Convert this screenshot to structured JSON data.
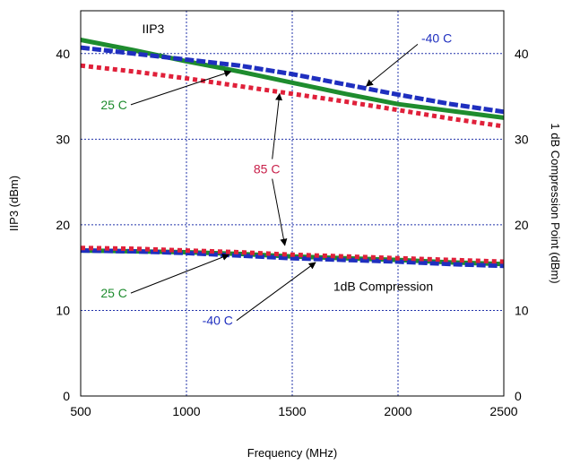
{
  "chart_data": {
    "type": "line",
    "title": "",
    "xlabel": "Frequency (MHz)",
    "ylabel": "IIP3 (dBm)",
    "ylabel_right": "1 dB Compression Point (dBm)",
    "xlim": [
      500,
      2500
    ],
    "ylim": [
      0,
      45
    ],
    "x_ticks": [
      500,
      1000,
      1500,
      2000,
      2500
    ],
    "y_ticks": [
      0,
      10,
      20,
      30,
      40
    ],
    "grid": true,
    "series": [
      {
        "name": "-40 C",
        "group": "IIP3",
        "color": "#1f2fbf",
        "style": "dashed",
        "x": [
          500,
          750,
          1000,
          1250,
          1500,
          1750,
          2000,
          2250,
          2500
        ],
        "y": [
          40.7,
          40.0,
          39.3,
          38.6,
          37.6,
          36.4,
          35.2,
          34.1,
          33.2
        ]
      },
      {
        "name": "25 C",
        "group": "IIP3",
        "color": "#1e8c2e",
        "style": "solid",
        "x": [
          500,
          750,
          1000,
          1250,
          1500,
          1750,
          2000,
          2250,
          2500
        ],
        "y": [
          41.6,
          40.4,
          39.1,
          37.9,
          36.6,
          35.3,
          34.1,
          33.3,
          32.5
        ]
      },
      {
        "name": "85 C",
        "group": "IIP3",
        "color": "#e0203a",
        "style": "dotted",
        "x": [
          500,
          750,
          1000,
          1250,
          1500,
          1750,
          2000,
          2250,
          2500
        ],
        "y": [
          38.6,
          37.9,
          37.1,
          36.2,
          35.3,
          34.4,
          33.4,
          32.4,
          31.5
        ]
      },
      {
        "name": "-40 C",
        "group": "1dB Compression",
        "color": "#1f2fbf",
        "style": "dashed",
        "x": [
          500,
          750,
          1000,
          1250,
          1500,
          1750,
          2000,
          2250,
          2500
        ],
        "y": [
          17.0,
          16.9,
          16.7,
          16.4,
          16.1,
          15.9,
          15.7,
          15.4,
          15.2
        ]
      },
      {
        "name": "25 C",
        "group": "1dB Compression",
        "color": "#1e8c2e",
        "style": "solid",
        "x": [
          500,
          750,
          1000,
          1250,
          1500,
          1750,
          2000,
          2250,
          2500
        ],
        "y": [
          17.0,
          16.9,
          16.8,
          16.6,
          16.3,
          16.1,
          15.9,
          15.6,
          15.4
        ]
      },
      {
        "name": "85 C",
        "group": "1dB Compression",
        "color": "#e0203a",
        "style": "dotted",
        "x": [
          500,
          750,
          1000,
          1250,
          1500,
          1750,
          2000,
          2250,
          2500
        ],
        "y": [
          17.3,
          17.2,
          17.0,
          16.8,
          16.5,
          16.3,
          16.1,
          15.9,
          15.7
        ]
      }
    ],
    "annotations": [
      {
        "text": "IIP3",
        "color": "#000000",
        "at": [
          790,
          42.4
        ],
        "anchor": "start",
        "arrows": []
      },
      {
        "text": "-40 C",
        "color": "#1f2fbf",
        "at": [
          2110,
          41.3
        ],
        "anchor": "start",
        "arrows": [
          [
            1850,
            36.2
          ]
        ]
      },
      {
        "text": "25 C",
        "color": "#1e8c2e",
        "at": [
          720,
          33.5
        ],
        "anchor": "end",
        "arrows": [
          [
            1210,
            37.9
          ]
        ]
      },
      {
        "text": "85 C",
        "color": "#c8204a",
        "at": [
          1380,
          26.0
        ],
        "anchor": "middle",
        "arrows": [
          [
            1440,
            35.3
          ],
          [
            1465,
            17.6
          ]
        ]
      },
      {
        "text": "25 C",
        "color": "#1e8c2e",
        "at": [
          720,
          11.5
        ],
        "anchor": "end",
        "arrows": [
          [
            1200,
            16.5
          ]
        ]
      },
      {
        "text": "-40 C",
        "color": "#1f2fbf",
        "at": [
          1220,
          8.3
        ],
        "anchor": "end",
        "arrows": [
          [
            1610,
            15.6
          ]
        ]
      },
      {
        "text": "1dB Compression",
        "color": "#000000",
        "at": [
          1930,
          12.3
        ],
        "anchor": "middle",
        "arrows": []
      }
    ]
  }
}
